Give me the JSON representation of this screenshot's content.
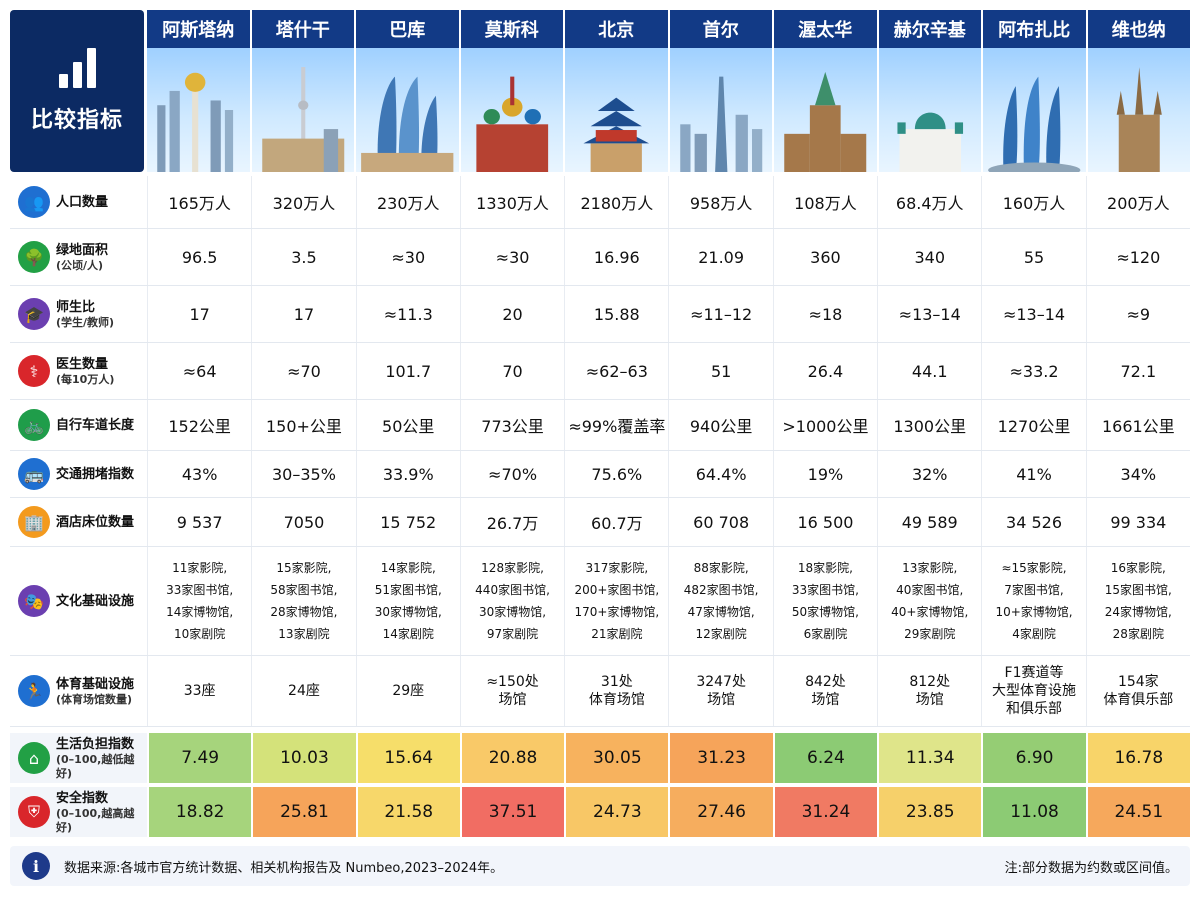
{
  "header": {
    "corner_title": "比较指标",
    "cities": [
      "阿斯塔纳",
      "塔什干",
      "巴库",
      "莫斯科",
      "北京",
      "首尔",
      "渥太华",
      "赫尔辛基",
      "阿布扎比",
      "维也纳"
    ]
  },
  "rows": [
    {
      "id": "population",
      "label": "人口数量",
      "sub": "",
      "icon": "people-icon",
      "color": "#1f6fd1",
      "values": [
        "165万人",
        "320万人",
        "230万人",
        "1330万人",
        "2180万人",
        "958万人",
        "108万人",
        "68.4万人",
        "160万人",
        "200万人"
      ]
    },
    {
      "id": "green",
      "label": "绿地面积",
      "sub": "(公顷/人)",
      "icon": "tree-icon",
      "color": "#22a045",
      "values": [
        "96.5",
        "3.5",
        "≈30",
        "≈30",
        "16.96",
        "21.09",
        "360",
        "340",
        "55",
        "≈120"
      ]
    },
    {
      "id": "ratio",
      "label": "师生比",
      "sub": "(学生/教师)",
      "icon": "graduation-cap-icon",
      "color": "#6b3fb0",
      "values": [
        "17",
        "17",
        "≈11.3",
        "20",
        "15.88",
        "≈11–12",
        "≈18",
        "≈13–14",
        "≈13–14",
        "≈9"
      ]
    },
    {
      "id": "doctors",
      "label": "医生数量",
      "sub": "(每10万人)",
      "icon": "doctor-icon",
      "color": "#d9262b",
      "values": [
        "≈64",
        "≈70",
        "101.7",
        "70",
        "≈62–63",
        "51",
        "26.4",
        "44.1",
        "≈33.2",
        "72.1"
      ]
    },
    {
      "id": "bike",
      "label": "自行车道长度",
      "sub": "",
      "icon": "bicycle-icon",
      "color": "#1f9d4a",
      "values": [
        "152公里",
        "150+公里",
        "50公里",
        "773公里",
        "≈99%覆盖率",
        "940公里",
        ">1000公里",
        "1300公里",
        "1270公里",
        "1661公里"
      ]
    },
    {
      "id": "traffic",
      "label": "交通拥堵指数",
      "sub": "",
      "icon": "bus-icon",
      "color": "#1f6fd1",
      "values": [
        "43%",
        "30–35%",
        "33.9%",
        "≈70%",
        "75.6%",
        "64.4%",
        "19%",
        "32%",
        "41%",
        "34%"
      ]
    },
    {
      "id": "hotel",
      "label": "酒店床位数量",
      "sub": "",
      "icon": "hotel-icon",
      "color": "#f39a1e",
      "values": [
        "9 537",
        "7050",
        "15 752",
        "26.7万",
        "60.7万",
        "60 708",
        "16 500",
        "49 589",
        "34 526",
        "99 334"
      ]
    },
    {
      "id": "culture",
      "label": "文化基础设施",
      "sub": "",
      "icon": "theater-masks-icon",
      "color": "#6b3fb0",
      "multi": true,
      "values": [
        [
          "11家影院,",
          "33家图书馆,",
          "14家博物馆,",
          "10家剧院"
        ],
        [
          "15家影院,",
          "58家图书馆,",
          "28家博物馆,",
          "13家剧院"
        ],
        [
          "14家影院,",
          "51家图书馆,",
          "30家博物馆,",
          "14家剧院"
        ],
        [
          "128家影院,",
          "440家图书馆,",
          "30家博物馆,",
          "97家剧院"
        ],
        [
          "317家影院,",
          "200+家图书馆,",
          "170+家博物馆,",
          "21家剧院"
        ],
        [
          "88家影院,",
          "482家图书馆,",
          "47家博物馆,",
          "12家剧院"
        ],
        [
          "18家影院,",
          "33家图书馆,",
          "50家博物馆,",
          "6家剧院"
        ],
        [
          "13家影院,",
          "40家图书馆,",
          "40+家博物馆,",
          "29家剧院"
        ],
        [
          "≈15家影院,",
          "7家图书馆,",
          "10+家博物馆,",
          "4家剧院"
        ],
        [
          "16家影院,",
          "15家图书馆,",
          "24家博物馆,",
          "28家剧院"
        ]
      ]
    },
    {
      "id": "sports",
      "label": "体育基础设施",
      "sub": "(体育场馆数量)",
      "icon": "runner-icon",
      "color": "#1f6fd1",
      "small": true,
      "values": [
        [
          "33座"
        ],
        [
          "24座"
        ],
        [
          "29座"
        ],
        [
          "≈150处",
          "场馆"
        ],
        [
          "31处",
          "体育场馆"
        ],
        [
          "3247处",
          "场馆"
        ],
        [
          "842处",
          "场馆"
        ],
        [
          "812处",
          "场馆"
        ],
        [
          "F1赛道等",
          "大型体育设施",
          "和俱乐部"
        ],
        [
          "154家",
          "体育俱乐部"
        ]
      ]
    }
  ],
  "scores": [
    {
      "id": "cost",
      "label": "生活负担指数",
      "sub": "(0–100,越低越好)",
      "icon": "house-icon",
      "color": "#22a045",
      "values": [
        "7.49",
        "10.03",
        "15.64",
        "20.88",
        "30.05",
        "31.23",
        "6.24",
        "11.34",
        "6.90",
        "16.78"
      ],
      "colors": [
        "#a6d47c",
        "#d4e27a",
        "#f6de6a",
        "#f9c968",
        "#f7b25e",
        "#f6a45a",
        "#8ccb74",
        "#dfe58a",
        "#95cd74",
        "#f8d469"
      ]
    },
    {
      "id": "safety",
      "label": "安全指数",
      "sub": "(0–100,越高越好)",
      "icon": "shield-icon",
      "color": "#d9262b",
      "values": [
        "18.82",
        "25.81",
        "21.58",
        "37.51",
        "24.73",
        "27.46",
        "31.24",
        "23.85",
        "11.08",
        "24.51"
      ],
      "colors": [
        "#a6d47c",
        "#f6a45a",
        "#f7d76a",
        "#f16d63",
        "#f8c766",
        "#f6ad5e",
        "#f07a63",
        "#f6d06a",
        "#8ccb74",
        "#f6a85c"
      ]
    }
  ],
  "footer": {
    "source": "数据来源:各城市官方统计数据、相关机构报告及 Numbeo,2023–2024年。",
    "note": "注:部分数据为约数或区间值。"
  }
}
